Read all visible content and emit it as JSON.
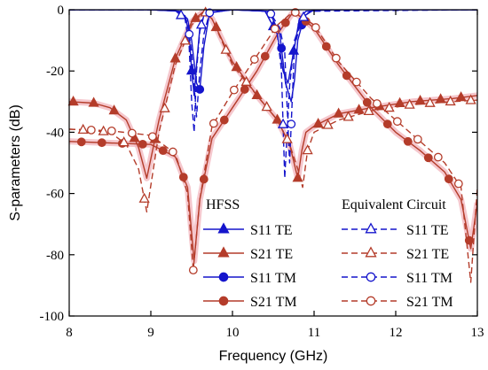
{
  "chart_data": {
    "type": "line",
    "xlabel": "Frequency (GHz)",
    "ylabel": "S-parameters (dB)",
    "xlim": [
      8,
      13
    ],
    "ylim": [
      -100,
      0
    ],
    "xticks": [
      8,
      9,
      10,
      11,
      12,
      13
    ],
    "yticks": [
      0,
      -20,
      -40,
      -60,
      -80,
      -100
    ],
    "grid": false,
    "legend": {
      "placement": "bottom-right",
      "group_titles": [
        "HFSS",
        "Equivalent Circuit"
      ],
      "entries": [
        "S11 TE",
        "S21 TE",
        "S11 TM",
        "S21 TM"
      ]
    },
    "colors": {
      "blue": "#1515cc",
      "red": "#b43c2a",
      "glow": "#f2b9c0"
    },
    "series": [
      {
        "name": "S11 TE",
        "group": "HFSS",
        "color": "#1515cc",
        "dash": "solid",
        "marker": "filled-triangle",
        "x": [
          8.0,
          9.0,
          9.3,
          9.42,
          9.47,
          9.5,
          9.53,
          9.56,
          9.6,
          9.65,
          9.72,
          10.0,
          10.4,
          10.55,
          10.62,
          10.68,
          10.74,
          10.82,
          10.9,
          11.2,
          12.0,
          13.0
        ],
        "y": [
          0,
          0,
          -0.3,
          -2,
          -8,
          -20,
          -28,
          -18,
          -6,
          -2,
          -0.3,
          0,
          -0.5,
          -8,
          -20,
          -24,
          -15,
          -3,
          -0.5,
          0,
          0,
          0
        ]
      },
      {
        "name": "S21 TE",
        "group": "HFSS",
        "color": "#b43c2a",
        "dash": "solid",
        "marker": "filled-triangle",
        "x": [
          8.0,
          8.3,
          8.5,
          8.7,
          8.85,
          8.95,
          9.1,
          9.3,
          9.5,
          9.65,
          9.75,
          10.0,
          10.3,
          10.55,
          10.7,
          10.8,
          10.85,
          10.9,
          11.0,
          11.3,
          11.7,
          12.2,
          12.7,
          13.0
        ],
        "y": [
          -30,
          -30.5,
          -32,
          -36,
          -45,
          -55,
          -36,
          -16,
          -4,
          -0.5,
          -3,
          -17,
          -28,
          -36,
          -44,
          -55,
          -46,
          -40,
          -38,
          -34,
          -32,
          -30,
          -29,
          -28
        ]
      },
      {
        "name": "S11 TM",
        "group": "HFSS",
        "color": "#1515cc",
        "dash": "solid",
        "marker": "filled-circle",
        "x": [
          8.0,
          9.0,
          9.35,
          9.45,
          9.5,
          9.56,
          9.6,
          9.65,
          9.72,
          10.0,
          10.45,
          10.58,
          10.65,
          10.72,
          10.76,
          10.8,
          10.88,
          11.0,
          13.0
        ],
        "y": [
          0,
          0,
          -0.5,
          -3,
          -10,
          -24,
          -26,
          -12,
          -1,
          0,
          -0.5,
          -8,
          -24,
          -30,
          -23,
          -10,
          -2,
          0,
          0
        ]
      },
      {
        "name": "S21 TM",
        "group": "HFSS",
        "color": "#b43c2a",
        "dash": "solid",
        "marker": "filled-circle",
        "x": [
          8.0,
          8.5,
          9.0,
          9.3,
          9.45,
          9.53,
          9.6,
          9.75,
          10.0,
          10.3,
          10.55,
          10.75,
          11.0,
          11.3,
          11.7,
          12.0,
          12.3,
          12.6,
          12.8,
          12.92,
          13.0
        ],
        "y": [
          -43,
          -43.5,
          -44,
          -48,
          -58,
          -82,
          -62,
          -42,
          -32,
          -20,
          -8,
          -0.5,
          -6,
          -18,
          -32,
          -40,
          -46,
          -53,
          -62,
          -78,
          -63
        ]
      },
      {
        "name": "S11 TE",
        "group": "Equivalent Circuit",
        "color": "#1515cc",
        "dash": "dashed",
        "marker": "open-triangle",
        "x": [
          8.0,
          9.0,
          9.3,
          9.42,
          9.47,
          9.5,
          9.53,
          9.56,
          9.6,
          9.65,
          9.72,
          10.0,
          10.4,
          10.55,
          10.6,
          10.64,
          10.7,
          10.76,
          10.85,
          10.95,
          13.0
        ],
        "y": [
          0,
          0,
          -0.3,
          -3,
          -12,
          -30,
          -40,
          -20,
          -7,
          -2,
          -0.3,
          0,
          -0.5,
          -8,
          -20,
          -55,
          -25,
          -10,
          -3,
          -0.5,
          0
        ]
      },
      {
        "name": "S21 TE",
        "group": "Equivalent Circuit",
        "color": "#b43c2a",
        "dash": "dashed",
        "marker": "open-triangle",
        "x": [
          8.0,
          8.3,
          8.5,
          8.7,
          8.85,
          8.95,
          9.1,
          9.3,
          9.5,
          9.65,
          9.75,
          10.0,
          10.3,
          10.55,
          10.7,
          10.8,
          10.86,
          10.92,
          11.0,
          11.3,
          11.7,
          12.2,
          12.7,
          13.0
        ],
        "y": [
          -39,
          -39.5,
          -40,
          -44,
          -52,
          -66,
          -40,
          -18,
          -5,
          -0.5,
          -3,
          -18,
          -28,
          -36,
          -44,
          -52,
          -58,
          -46,
          -40,
          -36,
          -33,
          -31,
          -30,
          -29.5
        ]
      },
      {
        "name": "S11 TM",
        "group": "Equivalent Circuit",
        "color": "#1515cc",
        "dash": "dashed",
        "marker": "open-circle",
        "x": [
          8.0,
          9.0,
          9.35,
          9.45,
          9.5,
          9.56,
          9.6,
          9.65,
          9.72,
          10.0,
          10.45,
          10.58,
          10.64,
          10.7,
          10.76,
          10.82,
          10.9,
          11.0,
          13.0
        ],
        "y": [
          0,
          0,
          -0.5,
          -4,
          -14,
          -35,
          -20,
          -8,
          -1,
          0,
          -0.5,
          -6,
          -14,
          -50,
          -12,
          -6,
          -1.5,
          0,
          0
        ]
      },
      {
        "name": "S21 TM",
        "group": "Equivalent Circuit",
        "color": "#b43c2a",
        "dash": "dashed",
        "marker": "open-circle",
        "x": [
          8.0,
          8.5,
          9.0,
          9.3,
          9.45,
          9.52,
          9.6,
          9.75,
          10.0,
          10.3,
          10.55,
          10.75,
          11.0,
          11.3,
          11.7,
          12.0,
          12.3,
          12.6,
          12.8,
          12.92,
          13.0
        ],
        "y": [
          -39,
          -39.5,
          -41,
          -47,
          -60,
          -85,
          -62,
          -38,
          -27,
          -15,
          -5,
          -0.5,
          -5,
          -17,
          -29,
          -36,
          -43,
          -50,
          -58,
          -89,
          -58
        ]
      }
    ]
  }
}
